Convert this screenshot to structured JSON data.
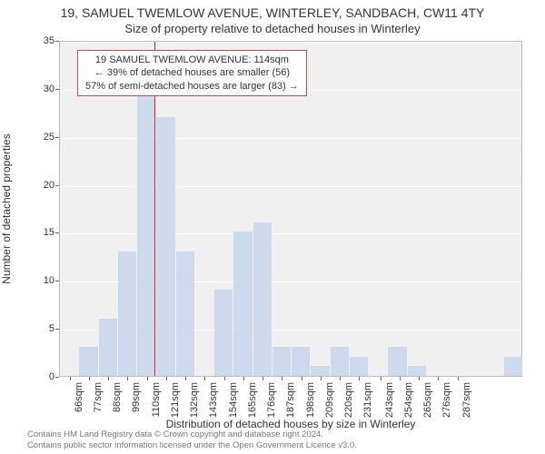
{
  "title_line1": "19, SAMUEL TWEMLOW AVENUE, WINTERLEY, SANDBACH, CW11 4TY",
  "title_line2": "Size of property relative to detached houses in Winterley",
  "chart": {
    "type": "bar",
    "y_label": "Number of detached properties",
    "x_label": "Distribution of detached houses by size in Winterley",
    "ylim": [
      0,
      35
    ],
    "ytick_step": 5,
    "yticks": [
      0,
      5,
      10,
      15,
      20,
      25,
      30,
      35
    ],
    "x_tick_labels": [
      "66sqm",
      "77sqm",
      "88sqm",
      "99sqm",
      "110sqm",
      "121sqm",
      "132sqm",
      "143sqm",
      "154sqm",
      "165sqm",
      "176sqm",
      "187sqm",
      "198sqm",
      "209sqm",
      "220sqm",
      "231sqm",
      "243sqm",
      "254sqm",
      "265sqm",
      "276sqm",
      "287sqm"
    ],
    "bar_start": 60,
    "bar_bin_width": 11,
    "bars": [
      0,
      3,
      6,
      13,
      30,
      27,
      13,
      0,
      9,
      15,
      16,
      3,
      3,
      1,
      3,
      2,
      0,
      3,
      1,
      0,
      0,
      0,
      0,
      2
    ],
    "bar_color": "#cdd9ec",
    "plot_bg": "#f0f0f0",
    "grid_color": "#ffffff",
    "axis_color": "#bbbbbb",
    "text_color": "#333333",
    "reference_line": {
      "x": 114,
      "color": "#d62222"
    }
  },
  "annotation": {
    "lines": [
      "19 SAMUEL TWEMLOW AVENUE: 114sqm",
      "← 39% of detached houses are smaller (56)",
      "57% of semi-detached houses are larger (83) →"
    ],
    "border_color": "#c05050",
    "bg_color": "#ffffff",
    "fontsize": 11
  },
  "attribution": {
    "line1": "Contains HM Land Registry data © Crown copyright and database right 2024.",
    "line2": "Contains public sector information licensed under the Open Government Licence v3.0."
  }
}
